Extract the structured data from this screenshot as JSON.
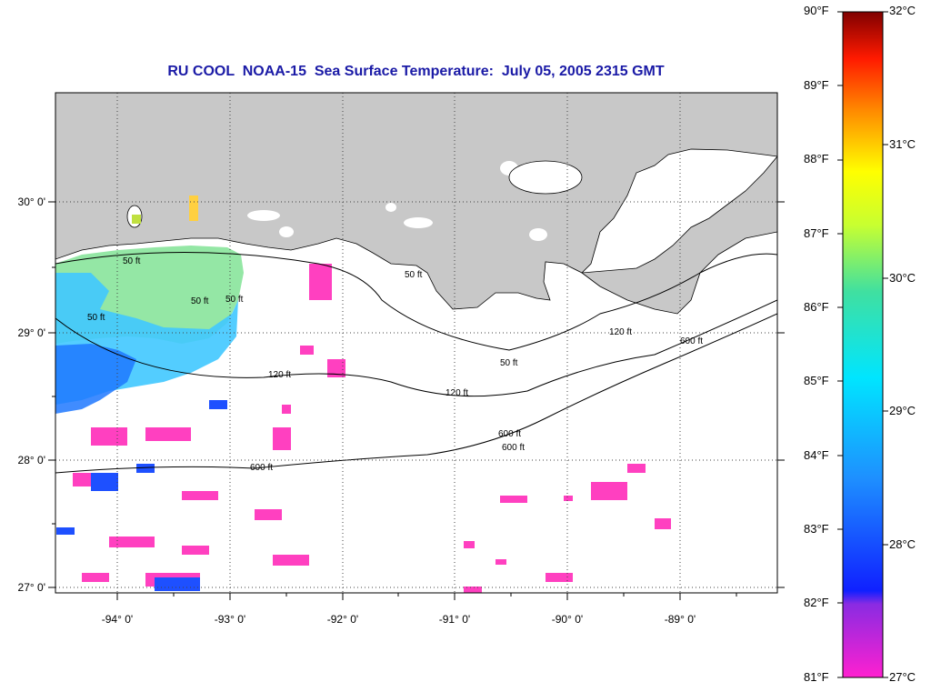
{
  "title": "RU COOL  NOAA-15  Sea Surface Temperature:  July 05, 2005 2315 GMT",
  "map": {
    "lon_labels": [
      "-94° 0'",
      "-93° 0'",
      "-92° 0'",
      "-91° 0'",
      "-90° 0'",
      "-89° 0'"
    ],
    "lat_labels": [
      "30° 0'",
      "29° 0'",
      "28° 0'",
      "27° 0'"
    ],
    "contour_labels": [
      "50 ft",
      "50 ft",
      "50 ft",
      "50 ft",
      "50 ft",
      "50 ft",
      "120 ft",
      "120 ft",
      "120 ft",
      "600 ft",
      "600 ft",
      "600 ft",
      "600 ft"
    ],
    "colors": {
      "land": "#c8c8c8",
      "water_no_data": "#ffffff",
      "warm_shelf": "#8ee6a0",
      "cool_water": "#1e78ff",
      "coolest_water": "#ff40c0"
    }
  },
  "colorbar": {
    "fahrenheit_labels": [
      "90°F",
      "89°F",
      "88°F",
      "87°F",
      "86°F",
      "85°F",
      "84°F",
      "83°F",
      "82°F",
      "81°F"
    ],
    "celsius_labels": [
      "32°C",
      "31°C",
      "30°C",
      "29°C",
      "28°C",
      "27°C"
    ],
    "min_c": 27,
    "max_c": 32
  }
}
